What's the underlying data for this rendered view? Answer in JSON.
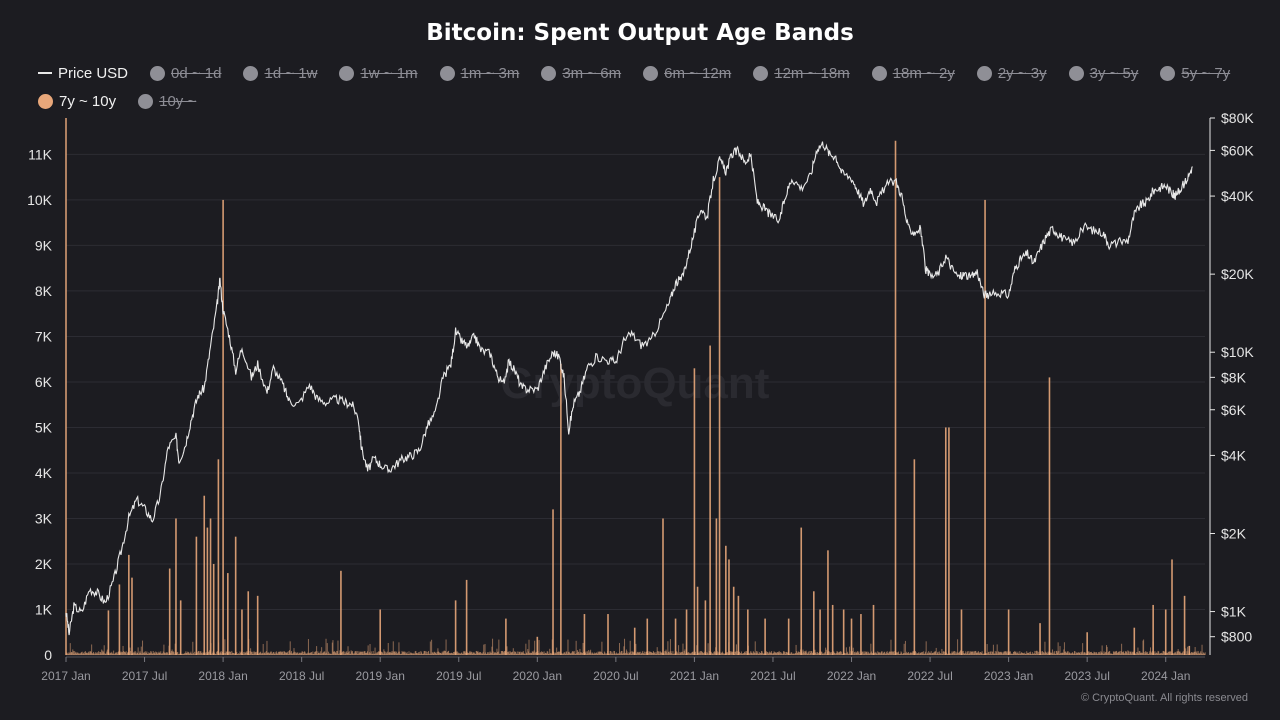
{
  "chart_data": {
    "type": "line+bar",
    "title": "Bitcoin: Spent Output Age Bands",
    "watermark": "CryptoQuant",
    "credit": "© CryptoQuant. All rights reserved",
    "legend": [
      {
        "label": "Price USD",
        "kind": "line",
        "active": true
      },
      {
        "label": "0d ~ 1d",
        "kind": "dot",
        "active": false
      },
      {
        "label": "1d ~ 1w",
        "kind": "dot",
        "active": false
      },
      {
        "label": "1w ~ 1m",
        "kind": "dot",
        "active": false
      },
      {
        "label": "1m ~ 3m",
        "kind": "dot",
        "active": false
      },
      {
        "label": "3m ~ 6m",
        "kind": "dot",
        "active": false
      },
      {
        "label": "6m ~ 12m",
        "kind": "dot",
        "active": false
      },
      {
        "label": "12m ~ 18m",
        "kind": "dot",
        "active": false
      },
      {
        "label": "18m ~ 2y",
        "kind": "dot",
        "active": false
      },
      {
        "label": "2y ~ 3y",
        "kind": "dot",
        "active": false
      },
      {
        "label": "3y ~ 5y",
        "kind": "dot",
        "active": false
      },
      {
        "label": "5y ~ 7y",
        "kind": "dot",
        "active": false
      },
      {
        "label": "7y ~ 10y",
        "kind": "dot",
        "active": true,
        "color": "#e8a77a"
      },
      {
        "label": "10y ~",
        "kind": "dot",
        "active": false
      }
    ],
    "x_range": [
      2017.0,
      2024.25
    ],
    "x_ticks": [
      {
        "label": "2017 Jan",
        "x": 2017.0
      },
      {
        "label": "2017 Jul",
        "x": 2017.5
      },
      {
        "label": "2018 Jan",
        "x": 2018.0
      },
      {
        "label": "2018 Jul",
        "x": 2018.5
      },
      {
        "label": "2019 Jan",
        "x": 2019.0
      },
      {
        "label": "2019 Jul",
        "x": 2019.5
      },
      {
        "label": "2020 Jan",
        "x": 2020.0
      },
      {
        "label": "2020 Jul",
        "x": 2020.5
      },
      {
        "label": "2021 Jan",
        "x": 2021.0
      },
      {
        "label": "2021 Jul",
        "x": 2021.5
      },
      {
        "label": "2022 Jan",
        "x": 2022.0
      },
      {
        "label": "2022 Jul",
        "x": 2022.5
      },
      {
        "label": "2023 Jan",
        "x": 2023.0
      },
      {
        "label": "2023 Jul",
        "x": 2023.5
      },
      {
        "label": "2024 Jan",
        "x": 2024.0
      }
    ],
    "y_left": {
      "range": [
        0,
        11800
      ],
      "ticks": [
        {
          "label": "0",
          "v": 0
        },
        {
          "label": "1K",
          "v": 1000
        },
        {
          "label": "2K",
          "v": 2000
        },
        {
          "label": "3K",
          "v": 3000
        },
        {
          "label": "4K",
          "v": 4000
        },
        {
          "label": "5K",
          "v": 5000
        },
        {
          "label": "6K",
          "v": 6000
        },
        {
          "label": "7K",
          "v": 7000
        },
        {
          "label": "8K",
          "v": 8000
        },
        {
          "label": "9K",
          "v": 9000
        },
        {
          "label": "10K",
          "v": 10000
        },
        {
          "label": "11K",
          "v": 11000
        }
      ]
    },
    "y_right": {
      "scale": "log",
      "range": [
        680,
        80000
      ],
      "ticks": [
        {
          "label": "$800",
          "v": 800
        },
        {
          "label": "$1K",
          "v": 1000
        },
        {
          "label": "$2K",
          "v": 2000
        },
        {
          "label": "$4K",
          "v": 4000
        },
        {
          "label": "$6K",
          "v": 6000
        },
        {
          "label": "$8K",
          "v": 8000
        },
        {
          "label": "$10K",
          "v": 10000
        },
        {
          "label": "$20K",
          "v": 20000
        },
        {
          "label": "$40K",
          "v": 40000
        },
        {
          "label": "$60K",
          "v": 60000
        },
        {
          "label": "$80K",
          "v": 80000
        }
      ]
    },
    "series": [
      {
        "name": "Price USD",
        "type": "line",
        "axis": "right",
        "color": "#e8e8e8",
        "points": [
          [
            2017.0,
            1000
          ],
          [
            2017.02,
            820
          ],
          [
            2017.05,
            1050
          ],
          [
            2017.1,
            990
          ],
          [
            2017.15,
            1220
          ],
          [
            2017.2,
            1180
          ],
          [
            2017.25,
            1080
          ],
          [
            2017.3,
            1300
          ],
          [
            2017.35,
            1700
          ],
          [
            2017.4,
            2300
          ],
          [
            2017.45,
            2700
          ],
          [
            2017.5,
            2500
          ],
          [
            2017.55,
            2250
          ],
          [
            2017.6,
            2800
          ],
          [
            2017.65,
            4300
          ],
          [
            2017.7,
            4700
          ],
          [
            2017.72,
            3800
          ],
          [
            2017.76,
            4400
          ],
          [
            2017.8,
            5600
          ],
          [
            2017.84,
            6800
          ],
          [
            2017.88,
            7300
          ],
          [
            2017.92,
            10500
          ],
          [
            2017.96,
            15000
          ],
          [
            2017.98,
            19000
          ],
          [
            2018.0,
            14500
          ],
          [
            2018.04,
            11500
          ],
          [
            2018.08,
            8500
          ],
          [
            2018.12,
            10500
          ],
          [
            2018.18,
            8000
          ],
          [
            2018.22,
            9000
          ],
          [
            2018.28,
            7000
          ],
          [
            2018.32,
            8700
          ],
          [
            2018.38,
            7500
          ],
          [
            2018.42,
            6500
          ],
          [
            2018.48,
            6300
          ],
          [
            2018.55,
            7500
          ],
          [
            2018.6,
            6600
          ],
          [
            2018.66,
            6400
          ],
          [
            2018.72,
            6600
          ],
          [
            2018.78,
            6400
          ],
          [
            2018.82,
            6300
          ],
          [
            2018.86,
            5600
          ],
          [
            2018.88,
            4300
          ],
          [
            2018.92,
            3500
          ],
          [
            2018.96,
            3900
          ],
          [
            2019.0,
            3700
          ],
          [
            2019.05,
            3500
          ],
          [
            2019.1,
            3700
          ],
          [
            2019.15,
            3900
          ],
          [
            2019.2,
            4000
          ],
          [
            2019.25,
            4200
          ],
          [
            2019.3,
            5200
          ],
          [
            2019.35,
            5800
          ],
          [
            2019.4,
            8000
          ],
          [
            2019.45,
            9000
          ],
          [
            2019.48,
            12000
          ],
          [
            2019.52,
            11000
          ],
          [
            2019.56,
            10500
          ],
          [
            2019.6,
            11600
          ],
          [
            2019.64,
            10200
          ],
          [
            2019.7,
            9900
          ],
          [
            2019.74,
            8300
          ],
          [
            2019.78,
            7500
          ],
          [
            2019.82,
            9200
          ],
          [
            2019.86,
            8400
          ],
          [
            2019.9,
            7300
          ],
          [
            2019.94,
            7200
          ],
          [
            2020.0,
            7200
          ],
          [
            2020.05,
            8700
          ],
          [
            2020.1,
            10000
          ],
          [
            2020.14,
            9600
          ],
          [
            2020.17,
            8000
          ],
          [
            2020.2,
            5000
          ],
          [
            2020.23,
            6300
          ],
          [
            2020.27,
            7000
          ],
          [
            2020.32,
            8800
          ],
          [
            2020.38,
            9600
          ],
          [
            2020.45,
            9300
          ],
          [
            2020.5,
            9200
          ],
          [
            2020.55,
            11000
          ],
          [
            2020.6,
            11800
          ],
          [
            2020.66,
            10700
          ],
          [
            2020.72,
            11000
          ],
          [
            2020.78,
            13000
          ],
          [
            2020.84,
            15500
          ],
          [
            2020.88,
            18500
          ],
          [
            2020.92,
            19200
          ],
          [
            2020.96,
            23500
          ],
          [
            2021.0,
            29000
          ],
          [
            2021.04,
            36000
          ],
          [
            2021.08,
            33000
          ],
          [
            2021.12,
            46000
          ],
          [
            2021.16,
            55000
          ],
          [
            2021.2,
            50000
          ],
          [
            2021.24,
            58000
          ],
          [
            2021.28,
            60000
          ],
          [
            2021.32,
            54000
          ],
          [
            2021.36,
            57000
          ],
          [
            2021.4,
            38000
          ],
          [
            2021.44,
            36000
          ],
          [
            2021.48,
            34000
          ],
          [
            2021.54,
            32000
          ],
          [
            2021.58,
            40000
          ],
          [
            2021.62,
            47000
          ],
          [
            2021.68,
            43000
          ],
          [
            2021.74,
            48000
          ],
          [
            2021.78,
            61000
          ],
          [
            2021.82,
            64000
          ],
          [
            2021.86,
            58000
          ],
          [
            2021.9,
            57000
          ],
          [
            2021.94,
            49000
          ],
          [
            2022.0,
            47000
          ],
          [
            2022.04,
            42000
          ],
          [
            2022.08,
            37000
          ],
          [
            2022.12,
            43000
          ],
          [
            2022.16,
            38000
          ],
          [
            2022.22,
            44000
          ],
          [
            2022.28,
            46000
          ],
          [
            2022.32,
            40000
          ],
          [
            2022.36,
            30000
          ],
          [
            2022.4,
            29000
          ],
          [
            2022.44,
            30000
          ],
          [
            2022.47,
            21000
          ],
          [
            2022.5,
            19500
          ],
          [
            2022.55,
            20000
          ],
          [
            2022.6,
            23500
          ],
          [
            2022.64,
            21000
          ],
          [
            2022.68,
            19500
          ],
          [
            2022.72,
            20000
          ],
          [
            2022.76,
            19400
          ],
          [
            2022.8,
            20500
          ],
          [
            2022.84,
            16800
          ],
          [
            2022.88,
            16500
          ],
          [
            2022.94,
            17000
          ],
          [
            2023.0,
            16600
          ],
          [
            2023.04,
            21000
          ],
          [
            2023.08,
            23000
          ],
          [
            2023.12,
            24000
          ],
          [
            2023.16,
            22000
          ],
          [
            2023.2,
            25000
          ],
          [
            2023.24,
            28000
          ],
          [
            2023.28,
            30000
          ],
          [
            2023.32,
            28500
          ],
          [
            2023.36,
            27000
          ],
          [
            2023.42,
            26500
          ],
          [
            2023.48,
            30500
          ],
          [
            2023.54,
            29500
          ],
          [
            2023.6,
            29000
          ],
          [
            2023.64,
            26000
          ],
          [
            2023.7,
            26500
          ],
          [
            2023.76,
            27000
          ],
          [
            2023.8,
            34000
          ],
          [
            2023.84,
            37000
          ],
          [
            2023.88,
            38000
          ],
          [
            2023.92,
            42000
          ],
          [
            2023.96,
            43000
          ],
          [
            2024.0,
            44000
          ],
          [
            2024.04,
            41000
          ],
          [
            2024.06,
            40000
          ],
          [
            2024.1,
            43000
          ],
          [
            2024.14,
            47000
          ],
          [
            2024.17,
            52000
          ]
        ]
      },
      {
        "name": "7y ~ 10y",
        "type": "bar",
        "axis": "left",
        "color": "#e8a77a",
        "base_noise": 60,
        "spikes": [
          [
            2017.0,
            11800
          ],
          [
            2017.27,
            980
          ],
          [
            2017.34,
            1550
          ],
          [
            2017.4,
            2200
          ],
          [
            2017.42,
            1700
          ],
          [
            2017.66,
            1900
          ],
          [
            2017.7,
            3000
          ],
          [
            2017.73,
            1200
          ],
          [
            2017.83,
            2600
          ],
          [
            2017.88,
            3500
          ],
          [
            2017.9,
            2800
          ],
          [
            2017.92,
            3000
          ],
          [
            2017.94,
            2000
          ],
          [
            2017.97,
            4300
          ],
          [
            2018.0,
            10000
          ],
          [
            2018.03,
            1800
          ],
          [
            2018.08,
            2600
          ],
          [
            2018.12,
            1000
          ],
          [
            2018.16,
            1400
          ],
          [
            2018.22,
            1300
          ],
          [
            2018.75,
            1850
          ],
          [
            2019.0,
            1000
          ],
          [
            2019.48,
            1200
          ],
          [
            2019.55,
            1650
          ],
          [
            2019.8,
            800
          ],
          [
            2020.0,
            400
          ],
          [
            2020.1,
            3200
          ],
          [
            2020.15,
            6400
          ],
          [
            2020.3,
            900
          ],
          [
            2020.45,
            900
          ],
          [
            2020.62,
            600
          ],
          [
            2020.7,
            800
          ],
          [
            2020.8,
            3000
          ],
          [
            2020.88,
            800
          ],
          [
            2020.95,
            1000
          ],
          [
            2021.0,
            6300
          ],
          [
            2021.02,
            1500
          ],
          [
            2021.07,
            1200
          ],
          [
            2021.1,
            6800
          ],
          [
            2021.14,
            3000
          ],
          [
            2021.16,
            10500
          ],
          [
            2021.2,
            2400
          ],
          [
            2021.22,
            2100
          ],
          [
            2021.25,
            1500
          ],
          [
            2021.28,
            1300
          ],
          [
            2021.34,
            1000
          ],
          [
            2021.45,
            800
          ],
          [
            2021.6,
            800
          ],
          [
            2021.68,
            2800
          ],
          [
            2021.76,
            1400
          ],
          [
            2021.8,
            1000
          ],
          [
            2021.85,
            2300
          ],
          [
            2021.88,
            1100
          ],
          [
            2021.95,
            1000
          ],
          [
            2022.0,
            800
          ],
          [
            2022.06,
            900
          ],
          [
            2022.14,
            1100
          ],
          [
            2022.28,
            11300
          ],
          [
            2022.4,
            4300
          ],
          [
            2022.6,
            5000
          ],
          [
            2022.62,
            5000
          ],
          [
            2022.7,
            1000
          ],
          [
            2022.85,
            10000
          ],
          [
            2023.0,
            1000
          ],
          [
            2023.2,
            700
          ],
          [
            2023.26,
            6100
          ],
          [
            2023.5,
            500
          ],
          [
            2023.8,
            600
          ],
          [
            2023.92,
            1100
          ],
          [
            2024.0,
            1000
          ],
          [
            2024.04,
            2100
          ],
          [
            2024.12,
            1300
          ],
          [
            2024.15,
            200
          ]
        ]
      }
    ]
  }
}
